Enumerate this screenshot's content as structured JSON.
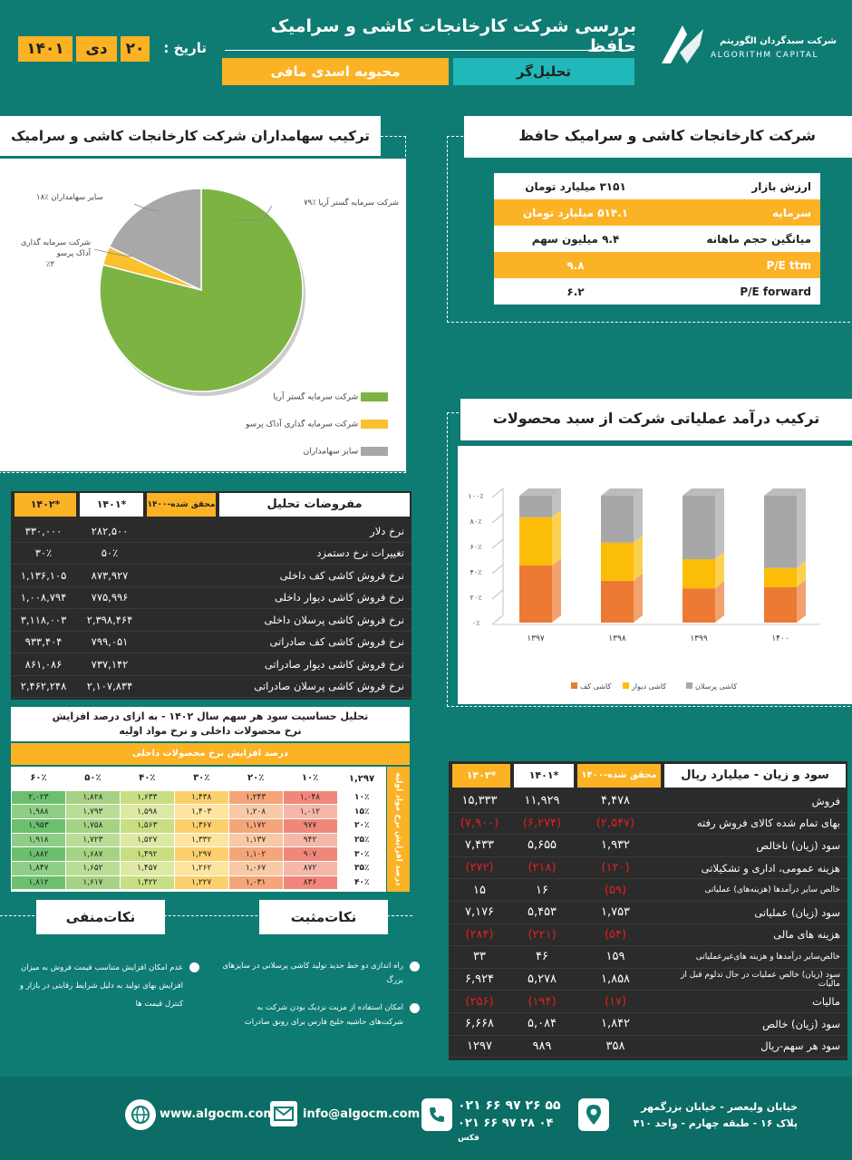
{
  "header": {
    "title": "بررسی شرکت کارخانجات کاشی و سرامیک حافظ",
    "date_label": "تاریخ :",
    "day": "۲۰",
    "month": "دی",
    "year": "۱۴۰۱",
    "analyst_label": "تحلیل‌گر",
    "analyst_name": "محبوبه اسدی مافی",
    "logo_fa": "شرکت سبدگردان الگوریتم",
    "logo_en": "ALGORITHM CAPITAL"
  },
  "company": {
    "title": "شرکت کارخانجات کاشی و سرامیک حافظ",
    "rows": [
      {
        "k": "ارزش بازار",
        "v": "۳۱۵۱ میلیارد تومان"
      },
      {
        "k": "سرمایه",
        "v": "۵۱۴.۱ میلیارد تومان"
      },
      {
        "k": "میانگین حجم ماهانه",
        "v": "۹.۴ میلیون سهم"
      },
      {
        "k": "P/E ttm",
        "v": "۹.۸"
      },
      {
        "k": "P/E forward",
        "v": "۶.۲"
      }
    ]
  },
  "shareholders": {
    "title": "ترکیب سهامداران شرکت کارخانجات کاشی و سرامیک حافظ",
    "labels": [
      "شرکت سرمایه گستر آریا  ٪۷۹",
      "سایر سهامداران  ٪۱۸",
      "شرکت سرمایه گذاری",
      "آداک پرسو",
      "٪۳"
    ],
    "legend": [
      "شرکت سرمایه گستر آریا",
      "شرکت سرمایه گذاری آداک پرسو",
      "سایر سهامداران"
    ]
  },
  "revenue": {
    "title": "ترکیب درآمد عملیاتی شرکت از سبد محصولات"
  },
  "chart_data": [
    {
      "type": "pie",
      "title": "ترکیب سهامداران شرکت کارخانجات کاشی و سرامیک حافظ",
      "categories": [
        "شرکت سرمایه گستر آریا",
        "شرکت سرمایه گذاری آداک پرسو",
        "سایر سهامداران"
      ],
      "values": [
        79,
        3,
        18
      ],
      "colors": [
        "#7cb342",
        "#fbc02d",
        "#a8a8a8"
      ]
    },
    {
      "type": "bar",
      "stacked": true,
      "title": "ترکیب درآمد عملیاتی شرکت از سبد محصولات",
      "categories": [
        "۱۳۹۷",
        "۱۳۹۸",
        "۱۳۹۹",
        "۱۴۰۰"
      ],
      "series": [
        {
          "name": "کاشی کف",
          "values": [
            45,
            33,
            27,
            28
          ],
          "color": "#ec7a32"
        },
        {
          "name": "کاشی دیوار",
          "values": [
            38,
            30,
            23,
            15
          ],
          "color": "#fbbd08"
        },
        {
          "name": "کاشی پرسلان",
          "values": [
            17,
            37,
            50,
            57
          ],
          "color": "#a7a7a7"
        }
      ],
      "yticks": [
        "۰٪",
        "۲۰٪",
        "۴۰٪",
        "۶۰٪",
        "۸۰٪",
        "۱۰۰٪"
      ],
      "ylim": [
        0,
        100
      ]
    }
  ],
  "assumptions": {
    "title": "مفروضات تحلیل",
    "cols": [
      "۱۴۰۰-محقق شده",
      "۱۴۰۱*",
      "۱۴۰۲*"
    ],
    "rows": [
      {
        "l": "نرخ دلار",
        "a": "۲۸۲,۵۰۰",
        "b": "۳۳۰,۰۰۰"
      },
      {
        "l": "تغییرات نرخ دستمزد",
        "a": "۵۰٪",
        "b": "۳۰٪"
      },
      {
        "l": "نرخ فروش کاشی کف داخلی",
        "a": "۸۷۳,۹۲۷",
        "b": "۱,۱۳۶,۱۰۵"
      },
      {
        "l": "نرخ فروش کاشی دیوار داخلی",
        "a": "۷۷۵,۹۹۶",
        "b": "۱,۰۰۸,۷۹۴"
      },
      {
        "l": "نرخ فروش کاشی پرسلان داخلی",
        "a": "۲,۳۹۸,۴۶۴",
        "b": "۳,۱۱۸,۰۰۳"
      },
      {
        "l": "نرخ فروش کاشی کف صادراتی",
        "a": "۷۹۹,۰۵۱",
        "b": "۹۳۳,۴۰۴"
      },
      {
        "l": "نرخ فروش کاشی دیوار صادراتی",
        "a": "۷۳۷,۱۴۲",
        "b": "۸۶۱,۰۸۶"
      },
      {
        "l": "نرخ فروش کاشی پرسلان صادراتی",
        "a": "۲,۱۰۷,۸۳۴",
        "b": "۲,۴۶۲,۲۴۸"
      }
    ]
  },
  "sensitivity": {
    "title1": "تحلیل حساسیت سود هر سهم سال ۱۴۰۲ - به ازای درصد افزایش",
    "title2": "نرخ محصولات داخلی و نرخ مواد اولیه",
    "top_label": "درصد افزایش نرخ محصولات داخلی",
    "side_label": "درصد افزایش نرخ مواد اولیه",
    "corner": "۱,۲۹۷",
    "cols": [
      "۱۰٪",
      "۲۰٪",
      "۳۰٪",
      "۴۰٪",
      "۵۰٪",
      "۶۰٪"
    ],
    "rows": [
      {
        "h": "۱۰٪",
        "v": [
          "۱,۰۴۸",
          "۱,۲۴۳",
          "۱,۴۳۸",
          "۱,۶۳۳",
          "۱,۸۲۸",
          "۲,۰۲۳"
        ]
      },
      {
        "h": "۱۵٪",
        "v": [
          "۱,۰۱۲",
          "۱,۲۰۸",
          "۱,۴۰۳",
          "۱,۵۹۸",
          "۱,۷۹۳",
          "۱,۹۸۸"
        ]
      },
      {
        "h": "۲۰٪",
        "v": [
          "۹۷۷",
          "۱,۱۷۲",
          "۱,۳۶۷",
          "۱,۵۶۳",
          "۱,۷۵۸",
          "۱,۹۵۳"
        ]
      },
      {
        "h": "۲۵٪",
        "v": [
          "۹۴۲",
          "۱,۱۳۷",
          "۱,۳۳۲",
          "۱,۵۲۷",
          "۱,۷۲۳",
          "۱,۹۱۸"
        ]
      },
      {
        "h": "۳۰٪",
        "v": [
          "۹۰۷",
          "۱,۱۰۲",
          "۱,۲۹۷",
          "۱,۴۹۲",
          "۱,۶۸۷",
          "۱,۸۸۲"
        ]
      },
      {
        "h": "۳۵٪",
        "v": [
          "۸۷۲",
          "۱,۰۶۷",
          "۱,۲۶۲",
          "۱,۴۵۷",
          "۱,۶۵۲",
          "۱,۸۴۷"
        ]
      },
      {
        "h": "۴۰٪",
        "v": [
          "۸۳۶",
          "۱,۰۳۱",
          "۱,۲۲۷",
          "۱,۴۲۲",
          "۱,۶۱۷",
          "۱,۸۱۲"
        ]
      }
    ]
  },
  "income": {
    "title": "سود و زیان - میلیارد ریال",
    "cols": [
      "۱۴۰۰-محقق شده",
      "۱۴۰۱*",
      "۱۴۰۲*"
    ],
    "rows": [
      {
        "l": "فروش",
        "a": "۴,۴۷۸",
        "b": "۱۱,۹۲۹",
        "c": "۱۵,۳۳۳",
        "n": false
      },
      {
        "l": "بهای تمام شده کالای فروش رفته",
        "a": "(۲,۵۴۷)",
        "b": "(۶,۲۷۴)",
        "c": "(۷,۹۰۰)",
        "n": true
      },
      {
        "l": "سود (زیان) ناخالص",
        "a": "۱,۹۳۲",
        "b": "۵,۶۵۵",
        "c": "۷,۴۳۳",
        "n": false
      },
      {
        "l": "هزینه عمومی، اداری و تشکیلاتی",
        "a": "(۱۲۰)",
        "b": "(۲۱۸)",
        "c": "(۲۷۲)",
        "n": true
      },
      {
        "l": "خالص سایر درآمدها (هزینه‌های) عملیاتی",
        "a": "(۵۹)",
        "b": "۱۶",
        "c": "۱۵",
        "n": "a"
      },
      {
        "l": "سود (زیان) عملیاتی",
        "a": "۱,۷۵۳",
        "b": "۵,۴۵۳",
        "c": "۷,۱۷۶",
        "n": false
      },
      {
        "l": "هزینه های مالی",
        "a": "(۵۴)",
        "b": "(۲۲۱)",
        "c": "(۲۸۴)",
        "n": true
      },
      {
        "l": "خالص‌سایر درآمدها و هزینه های‌غیرعملیاتی",
        "a": "۱۵۹",
        "b": "۴۶",
        "c": "۳۳",
        "n": false
      },
      {
        "l": "سود (زیان) خالص عملیات در حال تدلوم قبل از مالیات",
        "a": "۱,۸۵۸",
        "b": "۵,۲۷۸",
        "c": "۶,۹۲۴",
        "n": false
      },
      {
        "l": "مالیات",
        "a": "(۱۷)",
        "b": "(۱۹۴)",
        "c": "(۲۵۶)",
        "n": true
      },
      {
        "l": "سود (زیان) خالص",
        "a": "۱,۸۴۲",
        "b": "۵,۰۸۴",
        "c": "۶,۶۶۸",
        "n": false
      },
      {
        "l": "سود هر سهم-ریال",
        "a": "۳۵۸",
        "b": "۹۸۹",
        "c": "۱۲۹۷",
        "n": false
      }
    ]
  },
  "positives": {
    "title": "نکات‌مثبت",
    "items": [
      "راه اندازی دو خط جدید تولید کاشی پرسلانی در سایزهای بزرگ",
      "امکان استفاده از مزیت نزدیک بودن شرکت به شرکت‌های حاشیه خلیج فارس برای رونق صادرات"
    ]
  },
  "negatives": {
    "title": "نکات‌منفی",
    "items": [
      "عدم امکان افزایش متناسب قیمت فروش به میزان افزایش بهای تولید به دلیل شرایط رقابتی در بازار و کنترل قیمت ها"
    ]
  },
  "footer": {
    "web": "www.algocm.com",
    "email": "info@algocm.com",
    "phone": "۰۲۱ ۶۶ ۹۷ ۲۶ ۵۵",
    "fax": "۰۲۱ ۶۶ ۹۷ ۲۸ ۰۴",
    "fax_label": "فکس",
    "addr1": "خیابان ولیعصر - خیابان بزرگمهر",
    "addr2": "پلاک ۱۶ - طبقه چهارم - واحد ۴۱۰"
  }
}
